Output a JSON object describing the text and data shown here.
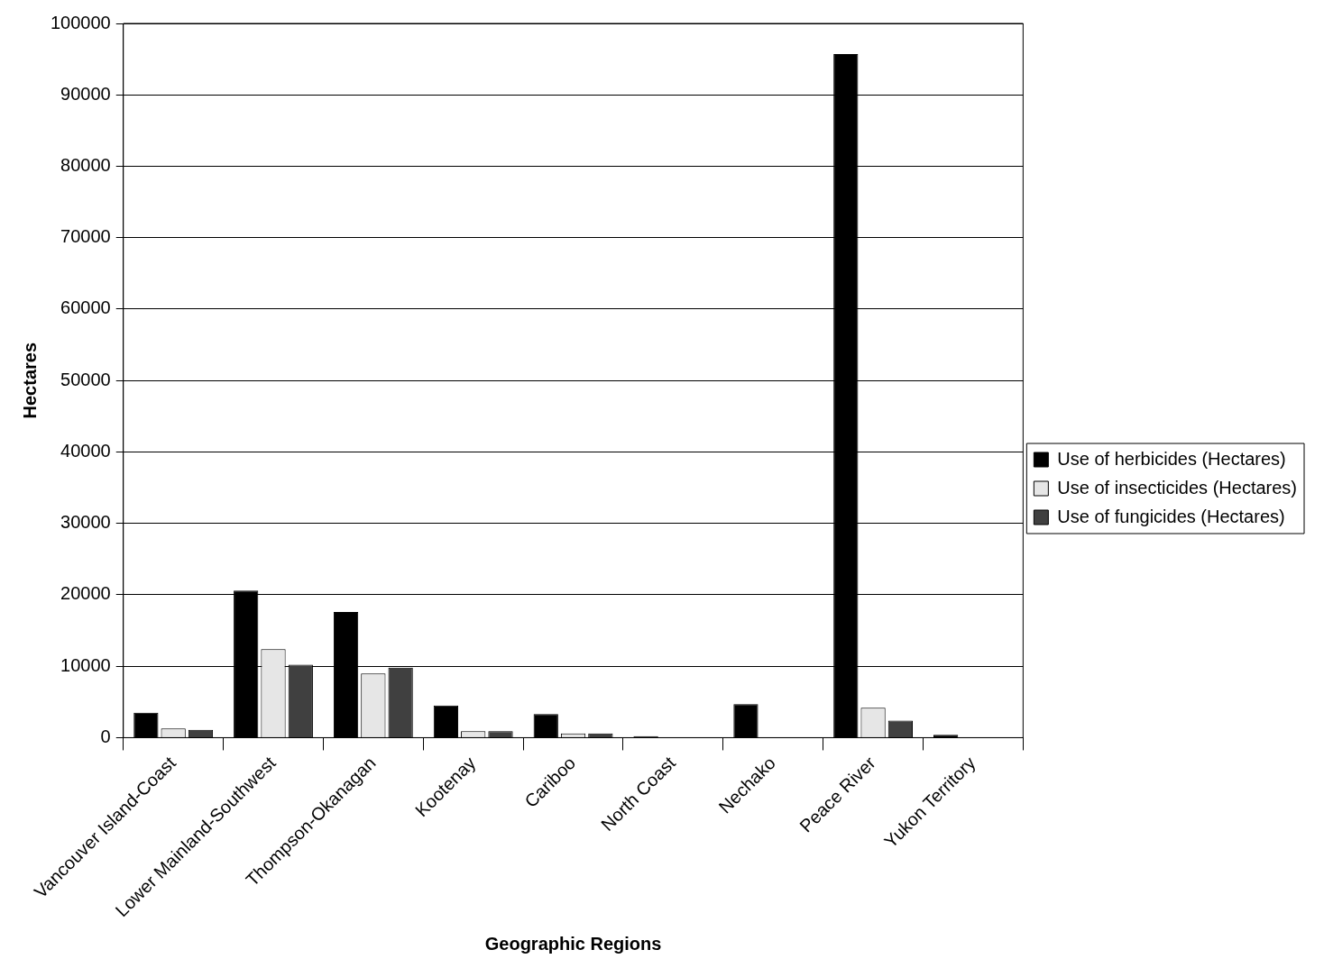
{
  "chart_data": {
    "type": "bar",
    "xlabel": "Geographic Regions",
    "ylabel": "Hectares",
    "categories": [
      "Vancouver Island-Coast",
      "Lower Mainland-Southwest",
      "Thompson-Okanagan",
      "Kootenay",
      "Cariboo",
      "North Coast",
      "Nechako",
      "Peace River",
      "Yukon Territory"
    ],
    "series": [
      {
        "name": "Use of herbicides (Hectares)",
        "color": "#000000",
        "values": [
          3500,
          20600,
          17600,
          4500,
          3300,
          200,
          4700,
          95700,
          400
        ]
      },
      {
        "name": "Use of insecticides (Hectares)",
        "color": "#e6e6e6",
        "values": [
          1300,
          12400,
          9000,
          900,
          600,
          0,
          0,
          4200,
          0
        ]
      },
      {
        "name": "Use of fungicides (Hectares)",
        "color": "#404040",
        "values": [
          1100,
          10200,
          9800,
          900,
          600,
          0,
          0,
          2400,
          0
        ]
      }
    ],
    "ylim": [
      0,
      100000
    ],
    "yticks": [
      0,
      10000,
      20000,
      30000,
      40000,
      50000,
      60000,
      70000,
      80000,
      90000,
      100000
    ],
    "grid": "y",
    "legend": "right"
  }
}
